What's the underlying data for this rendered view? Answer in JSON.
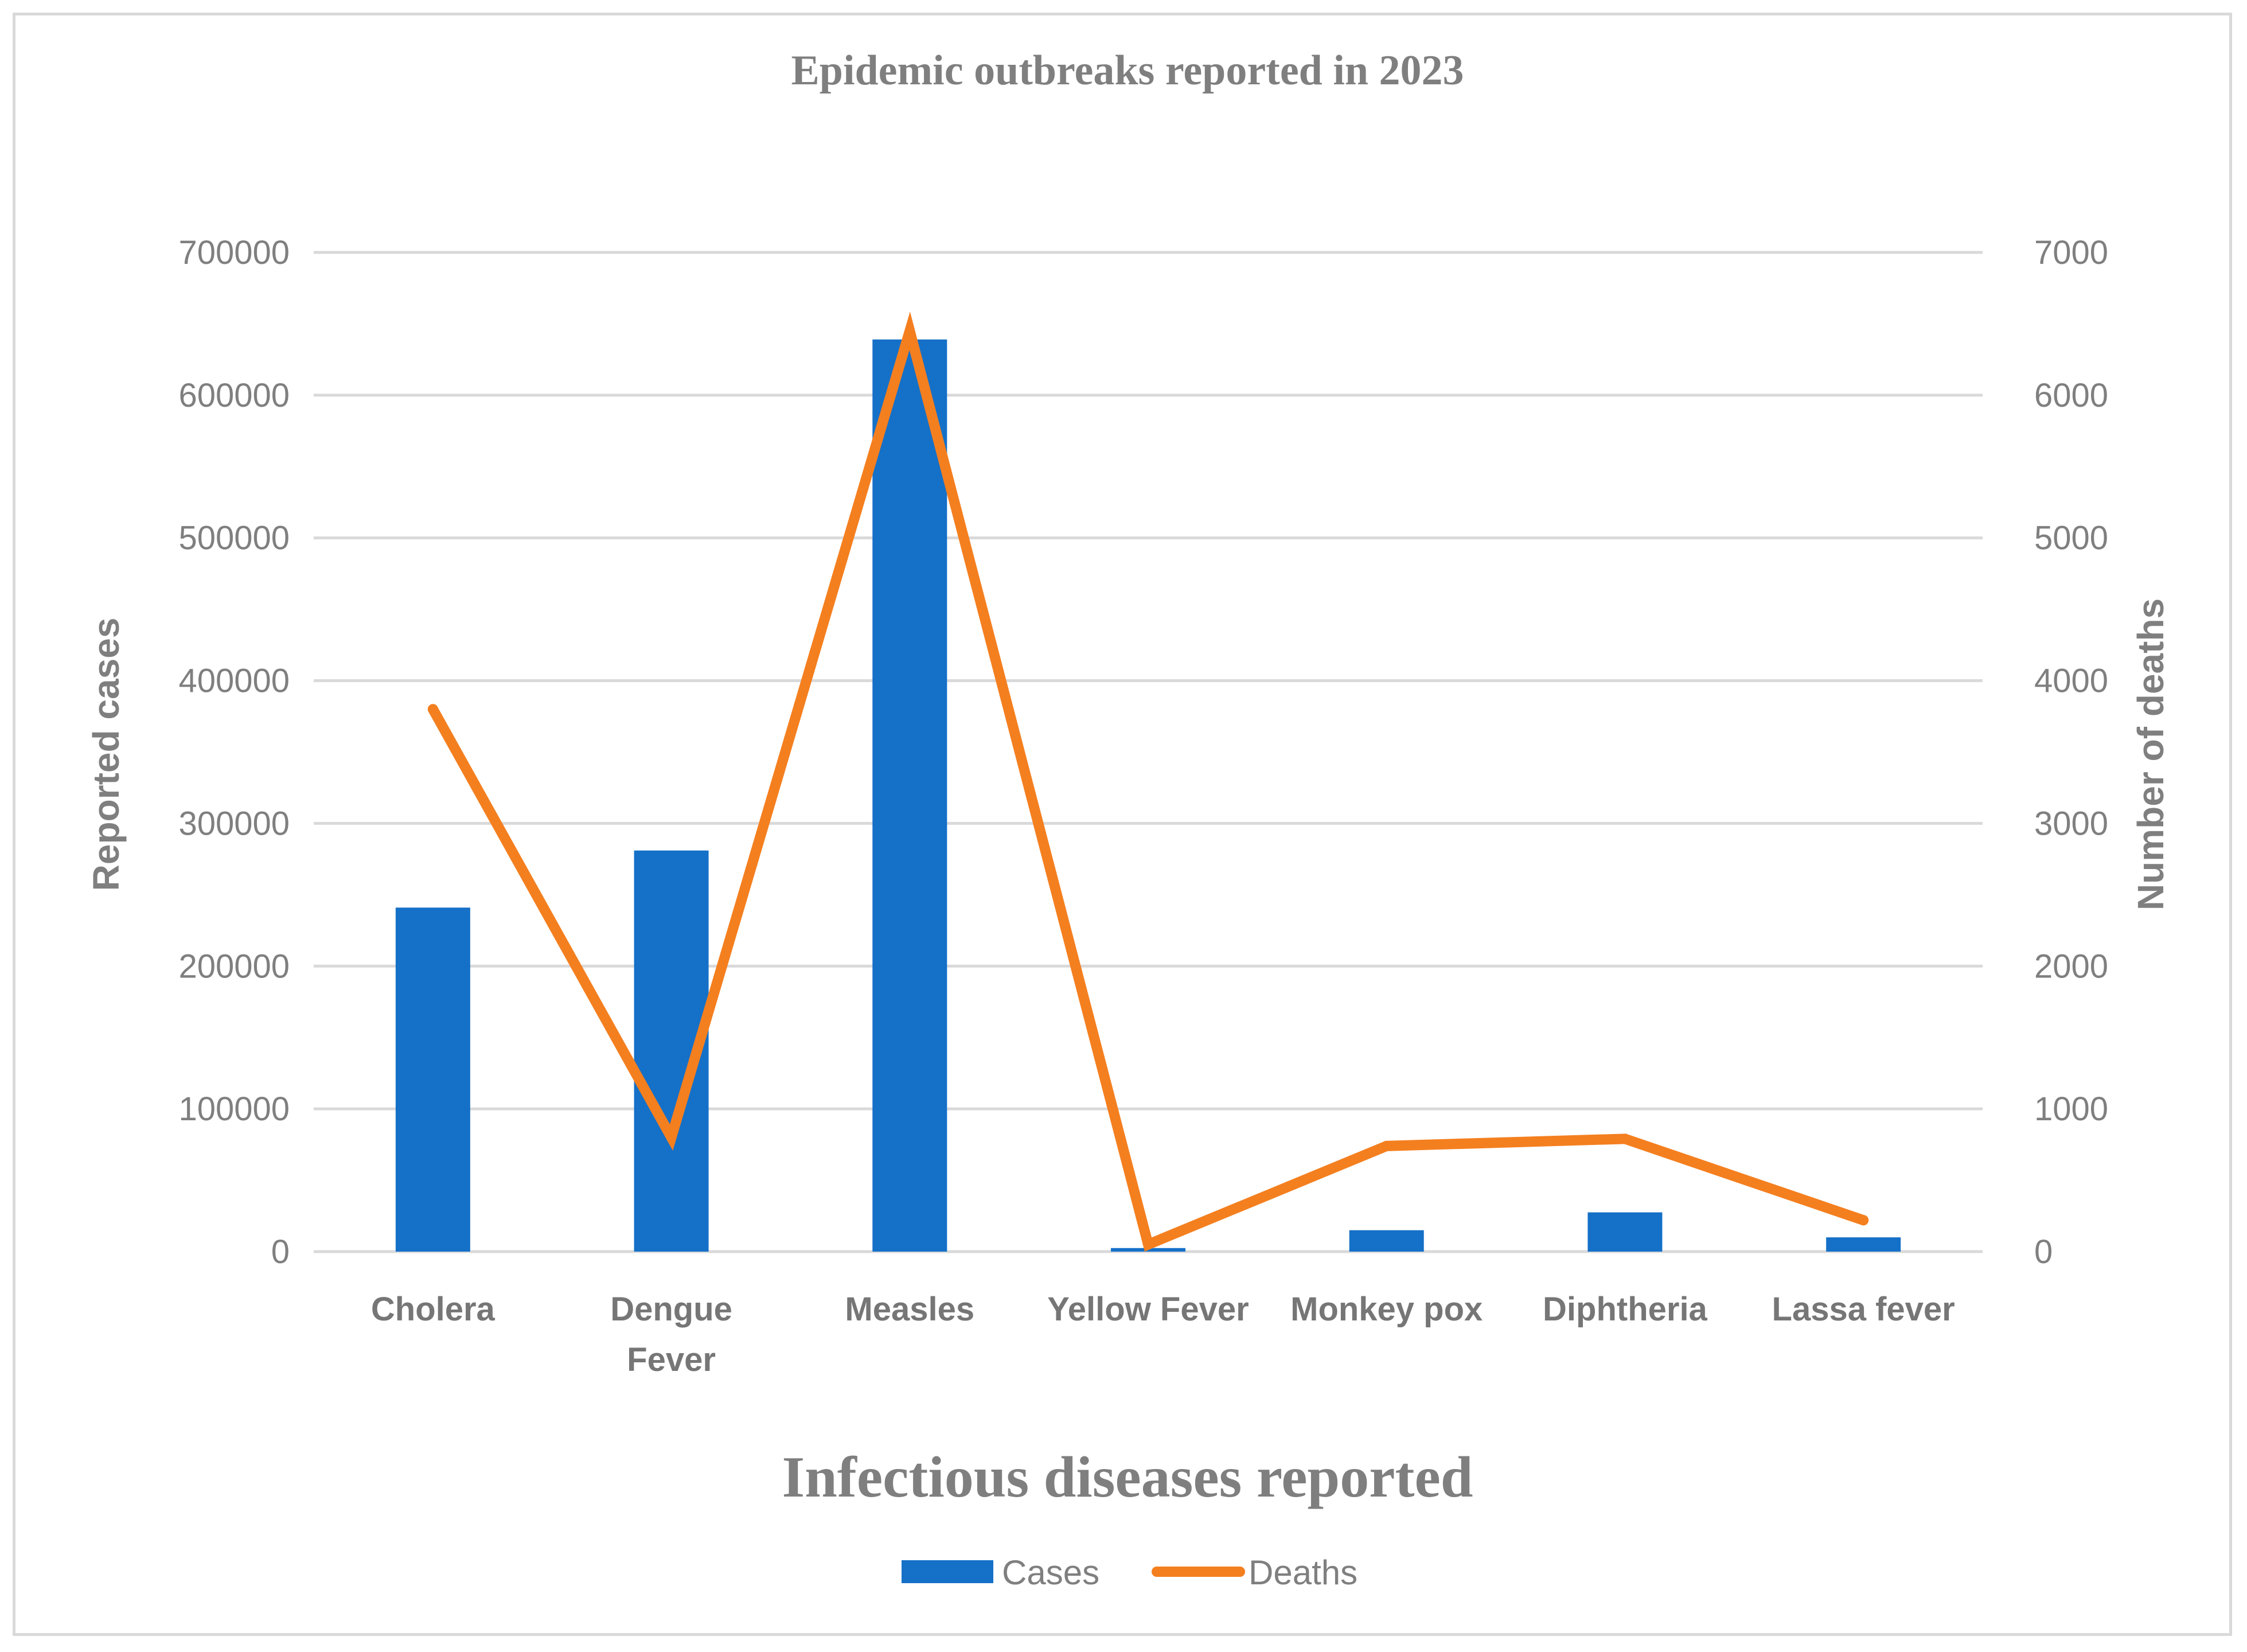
{
  "chart_data": {
    "type": "bar+line",
    "title": "Epidemic outbreaks reported in 2023",
    "xlabel": "Infectious diseases reported",
    "ylabel": "Reported cases",
    "y2label": "Number of deaths",
    "categories": [
      "Cholera",
      [
        "Dengue",
        "Fever"
      ],
      "Measles",
      "Yellow Fever",
      "Monkey pox",
      "Diphtheria",
      "Lassa fever"
    ],
    "series": [
      {
        "name": "Cases",
        "type": "bar",
        "axis": "left",
        "color": "#1570c8",
        "values": [
          241000,
          281000,
          639000,
          2500,
          15000,
          27500,
          10000
        ]
      },
      {
        "name": "Deaths",
        "type": "line",
        "axis": "right",
        "color": "#f47f1f",
        "values": [
          3800,
          800,
          6450,
          50,
          740,
          790,
          220
        ]
      }
    ],
    "ylim": [
      0,
      700000
    ],
    "yticks": [
      0,
      100000,
      200000,
      300000,
      400000,
      500000,
      600000,
      700000
    ],
    "y2lim": [
      0,
      7000
    ],
    "y2ticks": [
      0,
      1000,
      2000,
      3000,
      4000,
      5000,
      6000,
      7000
    ],
    "grid": true,
    "legend": "bottom-center"
  }
}
